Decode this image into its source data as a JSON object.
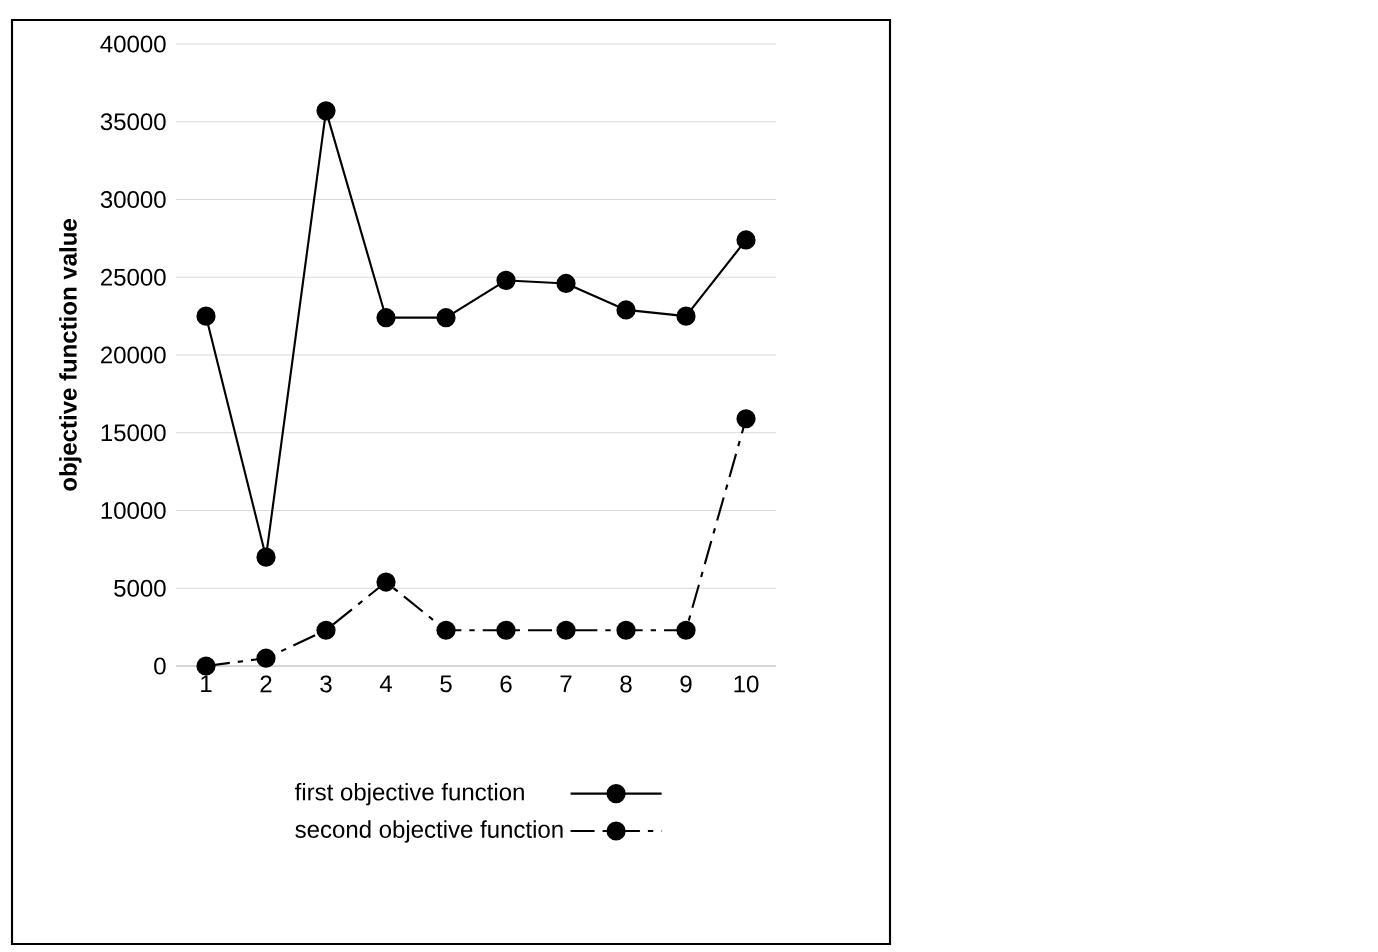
{
  "chart_data": {
    "type": "line",
    "ylabel": "objective function value",
    "categories": [
      "1",
      "2",
      "3",
      "4",
      "5",
      "6",
      "7",
      "8",
      "9",
      "10"
    ],
    "series": [
      {
        "name": "first objective function",
        "color": "#000000",
        "line_style": "solid",
        "values": [
          22500,
          7000,
          35700,
          22400,
          22400,
          24800,
          24600,
          22900,
          22500,
          27400
        ]
      },
      {
        "name": "second objective function",
        "color": "#000000",
        "line_style": "dashed",
        "values": [
          0,
          500,
          2300,
          5400,
          2300,
          2300,
          2300,
          2300,
          2300,
          15900
        ]
      }
    ],
    "ylim": [
      0,
      40000
    ],
    "yticks": [
      0,
      5000,
      10000,
      15000,
      20000,
      25000,
      30000,
      35000,
      40000
    ],
    "grid": "y",
    "legend": "bottom",
    "marker": "circle"
  }
}
